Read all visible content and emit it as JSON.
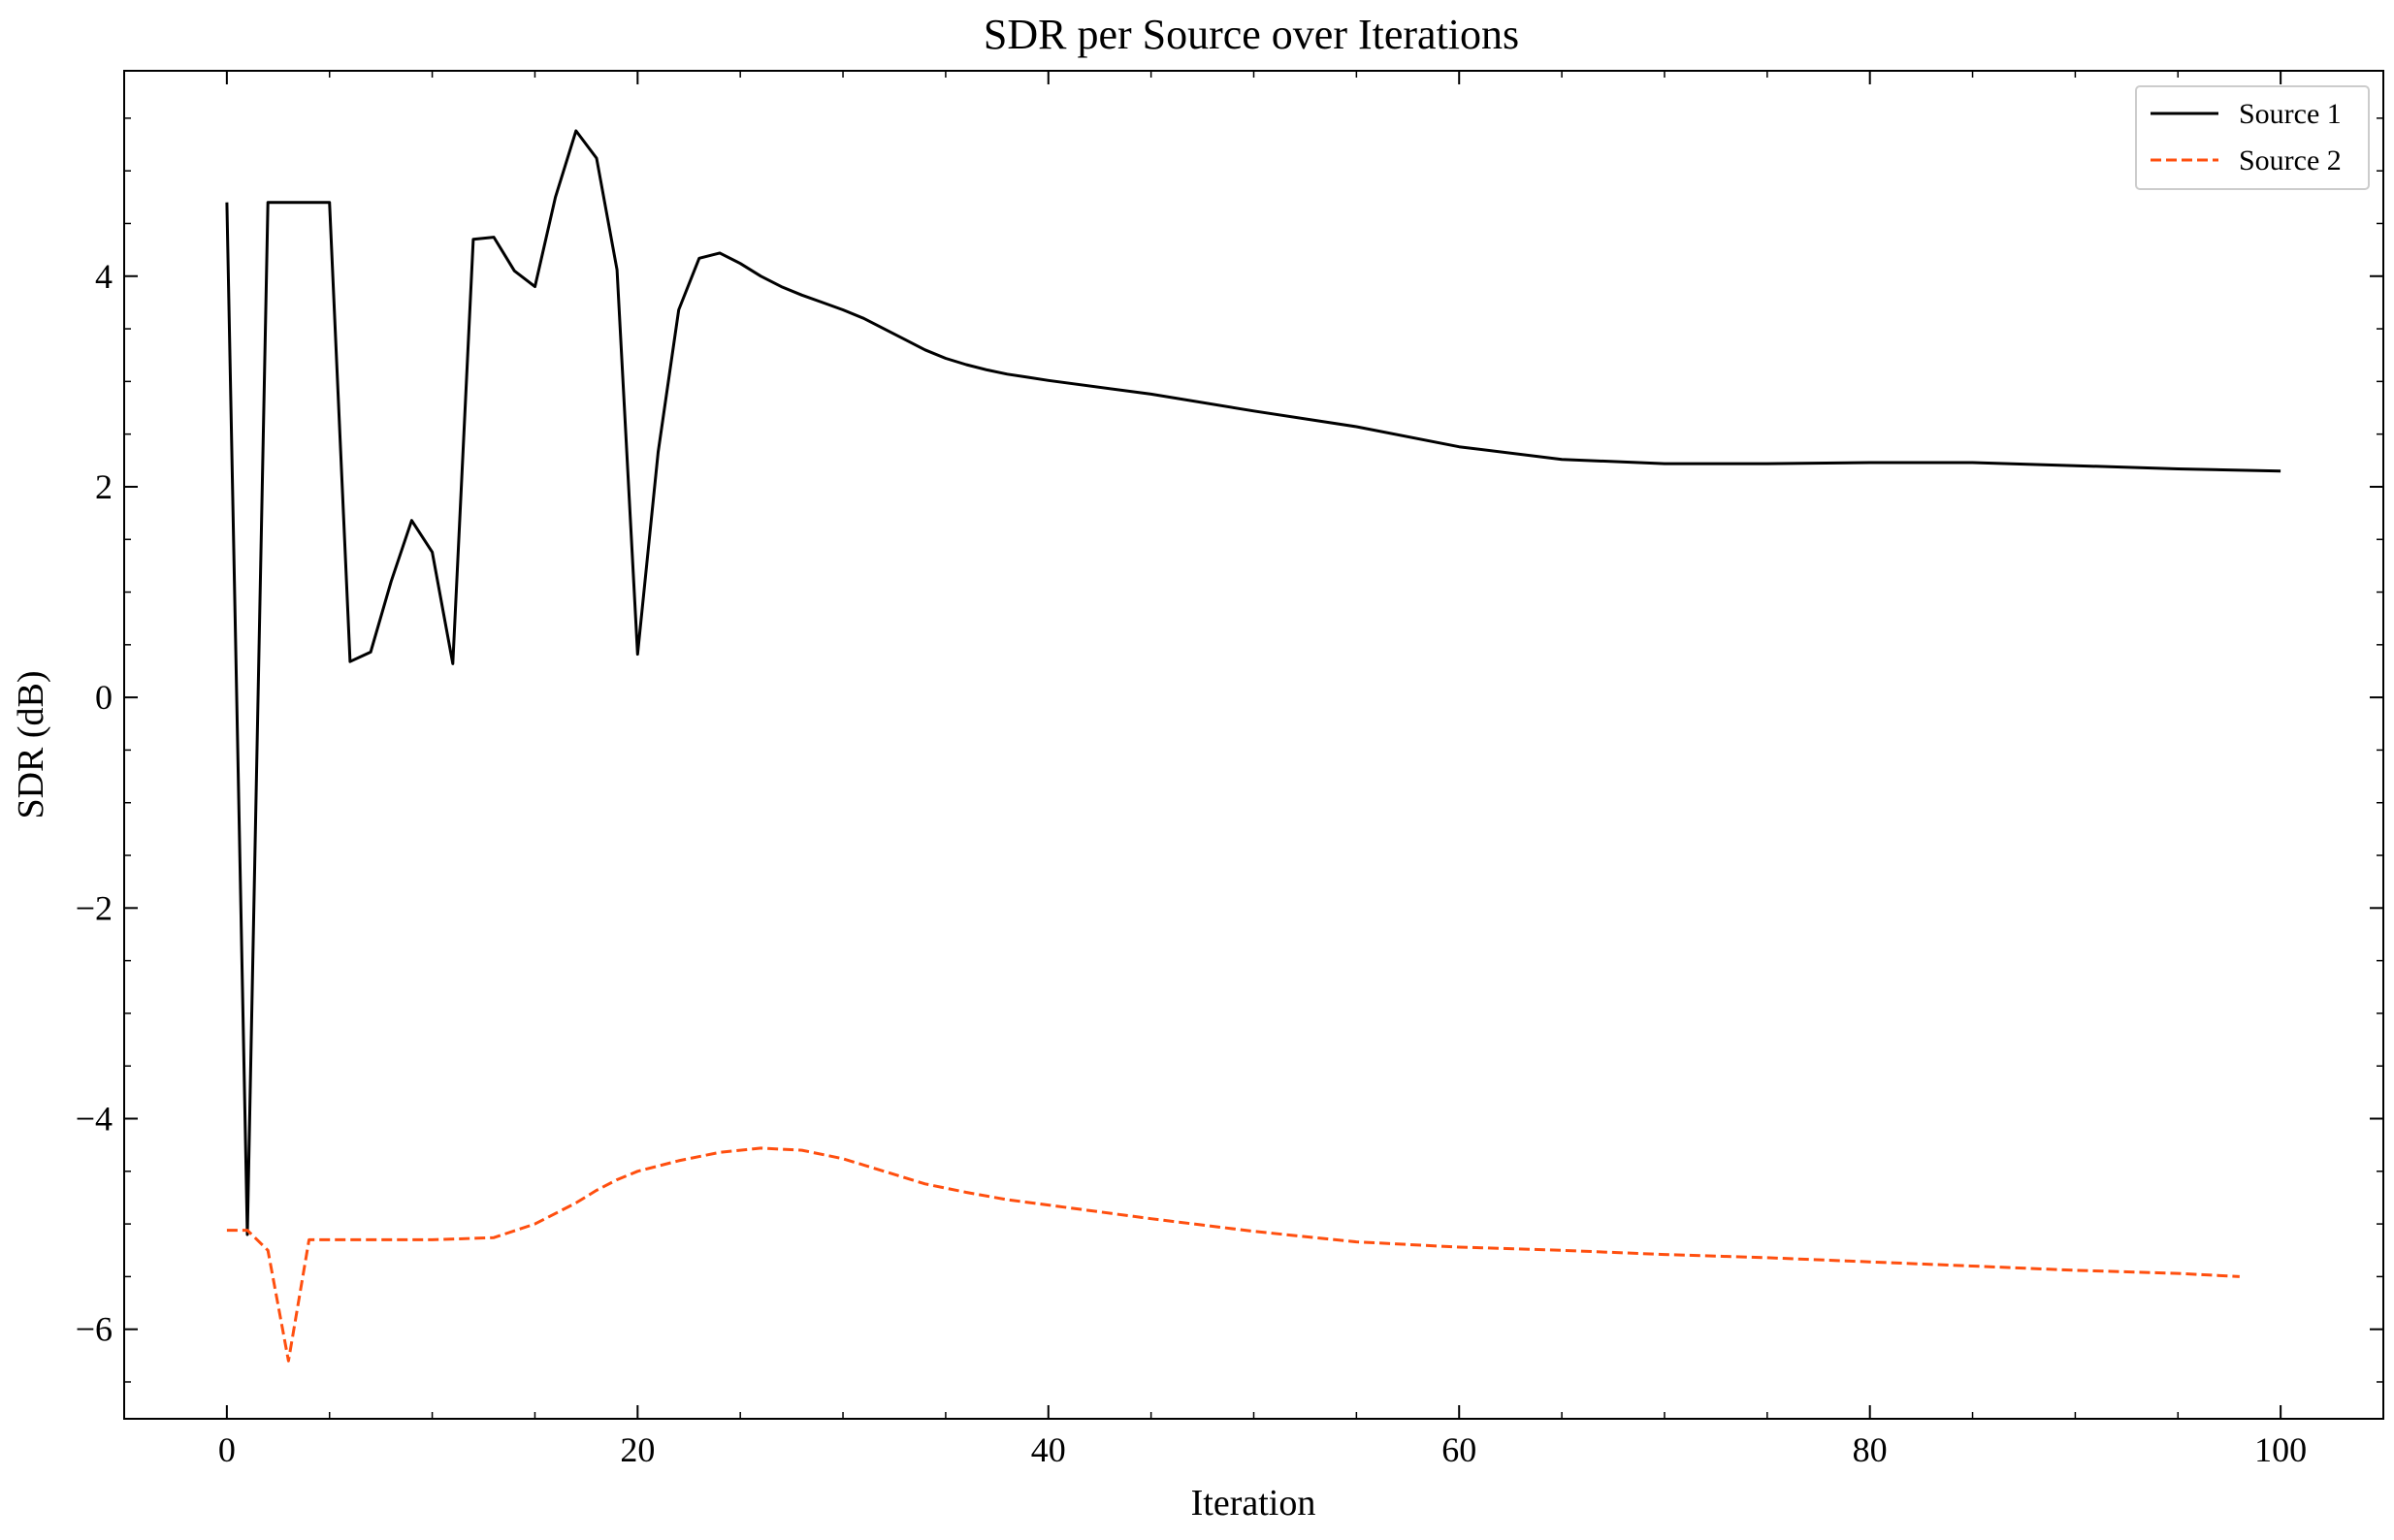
{
  "chart_data": {
    "type": "line",
    "title": "SDR per Source over Iterations",
    "xlabel": "Iteration",
    "ylabel": "SDR (dB)",
    "xlim": [
      -5,
      105
    ],
    "ylim": [
      -6.85,
      5.95
    ],
    "x_ticks": [
      0,
      20,
      40,
      60,
      80,
      100
    ],
    "x_tick_labels": [
      "0",
      "20",
      "40",
      "60",
      "80",
      "100"
    ],
    "y_ticks": [
      -6,
      -4,
      -2,
      0,
      2,
      4
    ],
    "y_tick_labels": [
      "−6",
      "−4",
      "−2",
      "0",
      "2",
      "4"
    ],
    "grid": false,
    "legend_position": "top-right",
    "legend": [
      "Source 1",
      "Source 2"
    ],
    "series": [
      {
        "name": "Source 1",
        "color": "#000000",
        "dash": "solid",
        "x": [
          0,
          1,
          2,
          3,
          4,
          5,
          6,
          7,
          8,
          9,
          10,
          11,
          12,
          13,
          14,
          15,
          16,
          17,
          18,
          19,
          20,
          21,
          22,
          23,
          24,
          25,
          26,
          27,
          28,
          29,
          30,
          31,
          32,
          33,
          34,
          35,
          36,
          37,
          38,
          39,
          40,
          45,
          50,
          55,
          60,
          65,
          70,
          75,
          80,
          85,
          90,
          95,
          100
        ],
        "y": [
          4.7,
          -5.1,
          4.7,
          4.7,
          4.7,
          4.7,
          0.34,
          0.43,
          1.1,
          1.68,
          1.38,
          0.32,
          4.35,
          4.37,
          4.05,
          3.9,
          4.75,
          5.38,
          5.12,
          4.06,
          0.41,
          2.33,
          3.68,
          4.17,
          4.22,
          4.12,
          4.0,
          3.9,
          3.82,
          3.75,
          3.68,
          3.6,
          3.5,
          3.4,
          3.3,
          3.22,
          3.16,
          3.11,
          3.07,
          3.04,
          3.01,
          2.88,
          2.72,
          2.57,
          2.38,
          2.26,
          2.22,
          2.22,
          2.23,
          2.23,
          2.2,
          2.17,
          2.15
        ]
      },
      {
        "name": "Source 2",
        "color": "#ff4f0f",
        "dash": "dashed",
        "x": [
          0,
          1,
          2,
          3,
          4,
          5,
          10,
          13,
          15,
          17,
          18,
          19,
          20,
          22,
          24,
          26,
          28,
          30,
          32,
          34,
          36,
          38,
          40,
          45,
          50,
          55,
          60,
          65,
          70,
          75,
          80,
          85,
          90,
          95,
          98
        ],
        "y": [
          -5.06,
          -5.06,
          -5.25,
          -6.3,
          -5.15,
          -5.15,
          -5.15,
          -5.13,
          -5.0,
          -4.8,
          -4.68,
          -4.58,
          -4.5,
          -4.4,
          -4.32,
          -4.28,
          -4.3,
          -4.38,
          -4.5,
          -4.62,
          -4.7,
          -4.77,
          -4.82,
          -4.95,
          -5.07,
          -5.17,
          -5.22,
          -5.25,
          -5.29,
          -5.32,
          -5.36,
          -5.4,
          -5.44,
          -5.47,
          -5.5
        ]
      }
    ]
  }
}
